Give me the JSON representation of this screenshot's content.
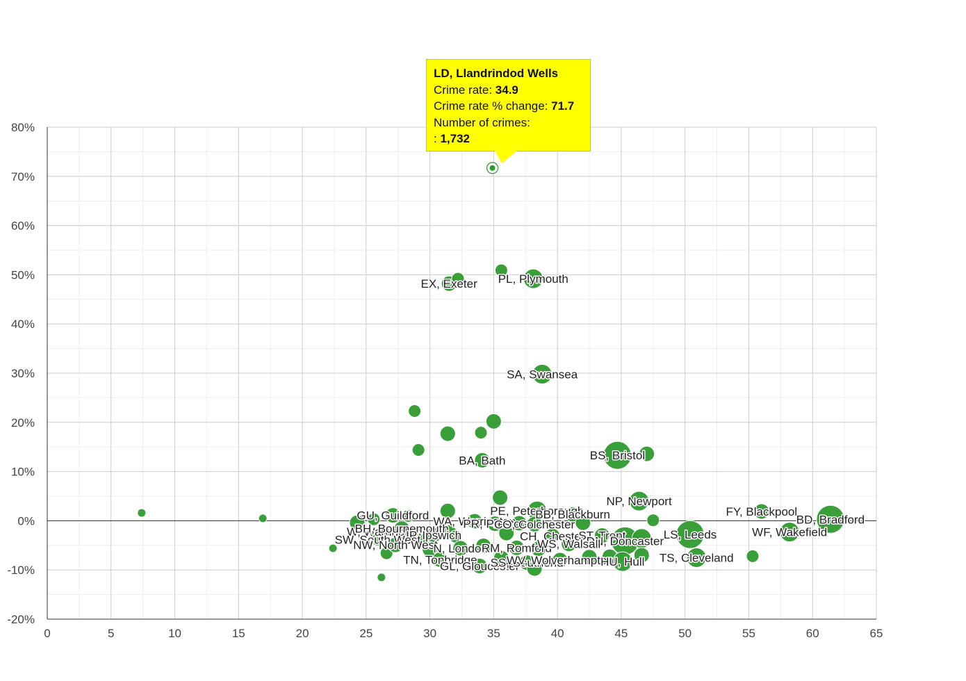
{
  "chart_data": {
    "type": "scatter",
    "title": "",
    "xlabel": "",
    "ylabel": "",
    "xlim": [
      0,
      65
    ],
    "ylim": [
      -20,
      80
    ],
    "x_ticks": [
      0,
      5,
      10,
      15,
      20,
      25,
      30,
      35,
      40,
      45,
      50,
      55,
      60,
      65
    ],
    "y_ticks": [
      -20,
      -10,
      0,
      10,
      20,
      30,
      40,
      50,
      60,
      70,
      80
    ],
    "y_tick_labels": [
      "-20%",
      "-10%",
      "0%",
      "10%",
      "20%",
      "30%",
      "40%",
      "50%",
      "60%",
      "70%",
      "80%"
    ],
    "grid": true,
    "colors": {
      "point": "#2e9a2e",
      "highlight": "#2e9a2e",
      "tooltip_bg": "#ffff00"
    },
    "points": [
      {
        "x": 34.9,
        "y": 71.7,
        "label": "",
        "size": "xs",
        "highlight": true
      },
      {
        "x": 7.4,
        "y": 1.6,
        "label": "",
        "size": "xs"
      },
      {
        "x": 16.9,
        "y": 0.5,
        "label": "",
        "size": "xs"
      },
      {
        "x": 22.4,
        "y": -5.6,
        "label": "",
        "size": "xs"
      },
      {
        "x": 26.2,
        "y": -11.5,
        "label": "",
        "size": "xs"
      },
      {
        "x": 31.5,
        "y": 48.2,
        "label": "EX, Exeter",
        "size": "m"
      },
      {
        "x": 32.2,
        "y": 49.2,
        "label": "",
        "size": "s"
      },
      {
        "x": 35.6,
        "y": 50.9,
        "label": "",
        "size": "s"
      },
      {
        "x": 38.1,
        "y": 49.2,
        "label": "PL, Plymouth",
        "size": "l"
      },
      {
        "x": 38.8,
        "y": 29.8,
        "label": "SA, Swansea",
        "size": "l"
      },
      {
        "x": 28.8,
        "y": 22.3,
        "label": "",
        "size": "s"
      },
      {
        "x": 35.0,
        "y": 20.2,
        "label": "",
        "size": "m"
      },
      {
        "x": 31.4,
        "y": 17.7,
        "label": "",
        "size": "m"
      },
      {
        "x": 34.0,
        "y": 17.9,
        "label": "",
        "size": "s"
      },
      {
        "x": 29.1,
        "y": 14.4,
        "label": "",
        "size": "s"
      },
      {
        "x": 34.1,
        "y": 12.3,
        "label": "BA, Bath",
        "size": "m"
      },
      {
        "x": 44.7,
        "y": 13.3,
        "label": "BS, Bristol",
        "size": "xl"
      },
      {
        "x": 47.0,
        "y": 13.6,
        "label": "",
        "size": "m"
      },
      {
        "x": 35.5,
        "y": 4.7,
        "label": "",
        "size": "m"
      },
      {
        "x": 46.4,
        "y": 4.0,
        "label": "NP, Newport",
        "size": "l"
      },
      {
        "x": 47.5,
        "y": 0.1,
        "label": "",
        "size": "s"
      },
      {
        "x": 56.0,
        "y": 1.9,
        "label": "FY, Blackpool",
        "size": "m"
      },
      {
        "x": 61.4,
        "y": 0.3,
        "label": "BD, Bradford",
        "size": "xl"
      },
      {
        "x": 58.2,
        "y": -2.3,
        "label": "WF, Wakefield",
        "size": "l"
      },
      {
        "x": 50.4,
        "y": -2.8,
        "label": "LS, Leeds",
        "size": "xl"
      },
      {
        "x": 50.9,
        "y": -7.5,
        "label": "TS, Cleveland",
        "size": "l"
      },
      {
        "x": 55.3,
        "y": -7.2,
        "label": "",
        "size": "s"
      },
      {
        "x": 27.1,
        "y": 1.1,
        "label": "GU, Guildford",
        "size": "m"
      },
      {
        "x": 28.3,
        "y": 1.0,
        "label": "",
        "size": "s"
      },
      {
        "x": 25.6,
        "y": 0.3,
        "label": "",
        "size": "s"
      },
      {
        "x": 24.3,
        "y": -0.4,
        "label": "",
        "size": "m"
      },
      {
        "x": 31.4,
        "y": 2.0,
        "label": "",
        "size": "m"
      },
      {
        "x": 38.4,
        "y": 2.0,
        "label": "PE, Peterborough",
        "size": "l"
      },
      {
        "x": 41.2,
        "y": 1.3,
        "label": "BB, Blackburn",
        "size": "m"
      },
      {
        "x": 33.5,
        "y": -0.1,
        "label": "WA, Warrington",
        "size": "m"
      },
      {
        "x": 35.1,
        "y": -0.6,
        "label": "PR, Preston",
        "size": "m"
      },
      {
        "x": 37.0,
        "y": -0.5,
        "label": "",
        "size": "m"
      },
      {
        "x": 38.2,
        "y": -0.7,
        "label": "CO, Colchester",
        "size": "m"
      },
      {
        "x": 42.0,
        "y": -0.4,
        "label": "",
        "size": "m"
      },
      {
        "x": 26.4,
        "y": -2.2,
        "label": "W, Warrington",
        "size": "s"
      },
      {
        "x": 27.8,
        "y": -1.6,
        "label": "BH, Bournemouth",
        "size": "m"
      },
      {
        "x": 30.3,
        "y": -2.9,
        "label": "IP, Ipswich",
        "size": "m"
      },
      {
        "x": 31.5,
        "y": -2.4,
        "label": "",
        "size": "m"
      },
      {
        "x": 32.0,
        "y": -3.2,
        "label": "",
        "size": "s"
      },
      {
        "x": 36.0,
        "y": -2.5,
        "label": "",
        "size": "m"
      },
      {
        "x": 39.6,
        "y": -3.1,
        "label": "CH, Chester",
        "size": "m"
      },
      {
        "x": 43.5,
        "y": -3.0,
        "label": "ST, Trent",
        "size": "m"
      },
      {
        "x": 45.3,
        "y": -4.1,
        "label": "DN, Doncaster",
        "size": "xl"
      },
      {
        "x": 46.6,
        "y": -3.6,
        "label": "",
        "size": "l"
      },
      {
        "x": 25.9,
        "y": -3.8,
        "label": "SW, South West",
        "size": "s"
      },
      {
        "x": 26.6,
        "y": -6.6,
        "label": "",
        "size": "s"
      },
      {
        "x": 27.3,
        "y": -4.9,
        "label": "NW, North West",
        "size": "m"
      },
      {
        "x": 29.2,
        "y": -3.9,
        "label": "",
        "size": "s"
      },
      {
        "x": 30.0,
        "y": -5.8,
        "label": "",
        "size": "m"
      },
      {
        "x": 32.4,
        "y": -5.6,
        "label": "N, London",
        "size": "m"
      },
      {
        "x": 34.2,
        "y": -5.1,
        "label": "",
        "size": "m"
      },
      {
        "x": 36.8,
        "y": -5.5,
        "label": "RM, Romford",
        "size": "m"
      },
      {
        "x": 38.5,
        "y": -5.7,
        "label": "",
        "size": "m"
      },
      {
        "x": 40.9,
        "y": -4.7,
        "label": "WS, Walsall",
        "size": "m"
      },
      {
        "x": 30.8,
        "y": -7.9,
        "label": "TN, Tonbridge",
        "size": "m"
      },
      {
        "x": 33.9,
        "y": -9.2,
        "label": "GL, Gloucester",
        "size": "m"
      },
      {
        "x": 35.6,
        "y": -7.6,
        "label": "",
        "size": "m"
      },
      {
        "x": 37.6,
        "y": -8.5,
        "label": "SS, Southend",
        "size": "m"
      },
      {
        "x": 38.2,
        "y": -9.7,
        "label": "",
        "size": "m"
      },
      {
        "x": 40.2,
        "y": -8.0,
        "label": "WV, Wolverhampton",
        "size": "m"
      },
      {
        "x": 42.5,
        "y": -7.4,
        "label": "",
        "size": "m"
      },
      {
        "x": 44.1,
        "y": -7.3,
        "label": "",
        "size": "m"
      },
      {
        "x": 45.1,
        "y": -8.3,
        "label": "HU, Hull",
        "size": "l"
      },
      {
        "x": 46.6,
        "y": -7.0,
        "label": "",
        "size": "m"
      }
    ]
  },
  "tooltip": {
    "title": "LD, Llandrindod Wells",
    "rate_label": "Crime rate: ",
    "rate_value": "34.9",
    "change_label": "Crime rate % change: ",
    "change_value": "71.7",
    "count_label": "Number of crimes:",
    "count_prefix": ": ",
    "count_value": "1,732"
  }
}
